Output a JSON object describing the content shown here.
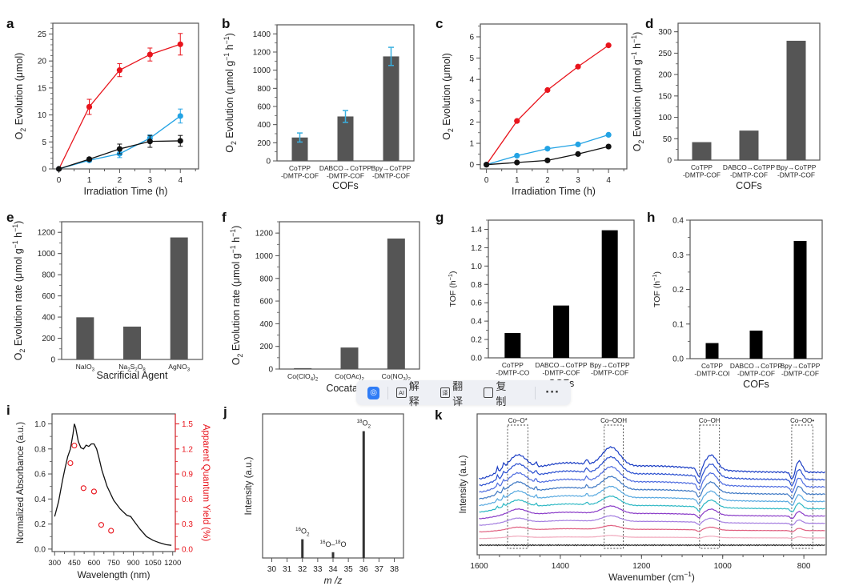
{
  "chart_data": [
    {
      "panel": "a",
      "type": "line",
      "xlabel": "Irradiation Time (h)",
      "ylabel": "O2 Evolution (μmol)",
      "xlim": [
        0,
        4
      ],
      "ylim": [
        0,
        27
      ],
      "xticks": [
        "0",
        "1",
        "2",
        "3",
        "4"
      ],
      "yticks": [
        "0",
        "5",
        "10",
        "15",
        "20",
        "25"
      ],
      "x": [
        0,
        1,
        2,
        3,
        4
      ],
      "series": [
        {
          "name": "red",
          "color": "#e8141c",
          "values": [
            0,
            11.5,
            18.3,
            21.2,
            23.1
          ],
          "errors": [
            0,
            1.4,
            1.2,
            1.2,
            2.0
          ]
        },
        {
          "name": "blue",
          "color": "#23a3e4",
          "values": [
            0,
            1.6,
            2.8,
            5.7,
            9.8
          ],
          "errors": [
            0,
            0.3,
            0.7,
            0.6,
            1.3
          ]
        },
        {
          "name": "black",
          "color": "#111111",
          "values": [
            0,
            1.8,
            3.7,
            5.1,
            5.2
          ],
          "errors": [
            0,
            0.3,
            0.9,
            1.1,
            1.0
          ]
        }
      ]
    },
    {
      "panel": "b",
      "type": "bar",
      "xlabel": "COFs",
      "ylabel": "O2 Evolution (μmol g-1 h-1)",
      "ylim": [
        0,
        1500
      ],
      "yticks": [
        "0",
        "200",
        "400",
        "600",
        "800",
        "1000",
        "1200",
        "1400"
      ],
      "categories": [
        [
          "CoTPP",
          "-DMTP-COF"
        ],
        [
          "DABCO→CoTPP",
          "-DMTP-COF"
        ],
        [
          "Bpy→CoTPP",
          "-DMTP-COF"
        ]
      ],
      "values": [
        258,
        490,
        1152
      ],
      "errors": [
        50,
        65,
        100
      ],
      "bar_color": "#555555",
      "error_color": "#3ab0e0"
    },
    {
      "panel": "c",
      "type": "line",
      "xlabel": "Irradiation Time (h)",
      "ylabel": "O2 Evolution (μmol)",
      "xlim": [
        0,
        4
      ],
      "ylim": [
        -0.2,
        6.6
      ],
      "xticks": [
        "0",
        "1",
        "2",
        "3",
        "4"
      ],
      "yticks": [
        "0",
        "1",
        "2",
        "3",
        "4",
        "5",
        "6"
      ],
      "x": [
        0,
        1,
        2,
        3,
        4
      ],
      "series": [
        {
          "name": "red",
          "color": "#e8141c",
          "values": [
            0,
            2.05,
            3.5,
            4.6,
            5.6
          ]
        },
        {
          "name": "blue",
          "color": "#23a3e4",
          "values": [
            0,
            0.42,
            0.75,
            0.95,
            1.4
          ]
        },
        {
          "name": "black",
          "color": "#111111",
          "values": [
            0,
            0.1,
            0.2,
            0.5,
            0.85
          ]
        }
      ]
    },
    {
      "panel": "d",
      "type": "bar",
      "xlabel": "COFs",
      "ylabel": "O2 Evolution (μmol g-1 h-1)",
      "ylim": [
        0,
        320
      ],
      "yticks": [
        "0",
        "50",
        "100",
        "150",
        "200",
        "250",
        "300"
      ],
      "categories": [
        [
          "CoTPP",
          "-DMTP-COF"
        ],
        [
          "DABCO→CoTPP",
          "-DMTP-COF"
        ],
        [
          "Bpy→CoTPP",
          "-DMTP-COF"
        ]
      ],
      "values": [
        42,
        69,
        279
      ],
      "bar_color": "#555555"
    },
    {
      "panel": "e",
      "type": "bar",
      "xlabel": "Sacrificial Agent",
      "ylabel": "O2 Evolution rate (μmol g-1 h-1)",
      "ylim": [
        0,
        1300
      ],
      "yticks": [
        "0",
        "200",
        "400",
        "600",
        "800",
        "1000",
        "1200"
      ],
      "categories": [
        [
          "NaIO3"
        ],
        [
          "Na2S2O8"
        ],
        [
          "AgNO3"
        ]
      ],
      "values": [
        398,
        310,
        1152
      ],
      "bar_color": "#555555"
    },
    {
      "panel": "f",
      "type": "bar",
      "xlabel": "Cocatalyst",
      "ylabel": "O2 Evolution rate (μmol g-1 h-1)",
      "ylim": [
        0,
        1300
      ],
      "yticks": [
        "0",
        "200",
        "400",
        "600",
        "800",
        "1000",
        "1200"
      ],
      "categories": [
        [
          "Co(ClO4)2"
        ],
        [
          "Co(OAc)2"
        ],
        [
          "Co(NO3)2"
        ]
      ],
      "values": [
        8,
        190,
        1152
      ],
      "bar_color": "#555555"
    },
    {
      "panel": "g",
      "type": "bar",
      "xlabel": "COFs",
      "ylabel": "TOF (h-1)",
      "ylim": [
        0,
        1.5
      ],
      "yticks": [
        "0.0",
        "0.2",
        "0.4",
        "0.6",
        "0.8",
        "1.0",
        "1.2",
        "1.4"
      ],
      "categories": [
        [
          "CoTPP",
          "-DMTP-CO"
        ],
        [
          "DABCO→CoTPP",
          "-DMTP-COF"
        ],
        [
          "Bpy→CoTPP",
          "-DMTP-COF"
        ]
      ],
      "values": [
        0.27,
        0.57,
        1.39
      ],
      "bar_color": "#000000"
    },
    {
      "panel": "h",
      "type": "bar",
      "xlabel": "COFs",
      "ylabel": "TOF (h-1)",
      "ylim": [
        0,
        0.4
      ],
      "yticks": [
        "0.0",
        "0.1",
        "0.2",
        "0.3",
        "0.4"
      ],
      "categories": [
        [
          "CoTPP",
          "-DMTP-COI"
        ],
        [
          "DABCO→CoTPP",
          "-DMTP-COF"
        ],
        [
          "Bpy→CoTPP",
          "-DMTP-COF"
        ]
      ],
      "values": [
        0.045,
        0.081,
        0.34
      ],
      "bar_color": "#000000"
    },
    {
      "panel": "i",
      "type": "line",
      "xlabel": "Wavelength (nm)",
      "ylabel": "Normalized Absorbance (a.u.)",
      "ylabel_right": "Apparent Quantum Yield (%)",
      "xlim": [
        280,
        1220
      ],
      "ylim": [
        -0.02,
        1.08
      ],
      "ylim_right": [
        -0.03,
        1.62
      ],
      "xticks": [
        "300",
        "450",
        "600",
        "750",
        "900",
        "1050",
        "1200"
      ],
      "yticks": [
        "0.0",
        "0.2",
        "0.4",
        "0.6",
        "0.8",
        "1.0"
      ],
      "yticks_right": [
        "0.0",
        "0.3",
        "0.6",
        "0.9",
        "1.2",
        "1.5"
      ],
      "absorbance": {
        "x": [
          300,
          330,
          360,
          380,
          400,
          420,
          440,
          450,
          460,
          480,
          500,
          520,
          540,
          560,
          580,
          600,
          620,
          640,
          660,
          700,
          750,
          800,
          850,
          880,
          900,
          950,
          1000,
          1050,
          1100,
          1150,
          1190
        ],
        "y": [
          0.26,
          0.38,
          0.55,
          0.65,
          0.74,
          0.8,
          0.92,
          1.0,
          0.97,
          0.86,
          0.81,
          0.8,
          0.83,
          0.82,
          0.84,
          0.84,
          0.8,
          0.72,
          0.63,
          0.5,
          0.39,
          0.32,
          0.27,
          0.26,
          0.23,
          0.16,
          0.1,
          0.07,
          0.05,
          0.035,
          0.03
        ]
      },
      "aqy_points": {
        "x": [
          420,
          450,
          520,
          600,
          655,
          730
        ],
        "y": [
          1.03,
          1.24,
          0.73,
          0.69,
          0.29,
          0.22
        ]
      },
      "line_color": "#111111",
      "point_color": "#e8141c"
    },
    {
      "panel": "j",
      "type": "bar",
      "xlabel": "m /z",
      "ylabel": "Intensity (a.u.)",
      "xlim": [
        29.4,
        38.6
      ],
      "xticks": [
        "30",
        "31",
        "32",
        "33",
        "34",
        "35",
        "36",
        "37",
        "38"
      ],
      "peaks": [
        {
          "x": 32,
          "value": 0.13,
          "label_iso": "16",
          "label_base": "O",
          "label_sub": "2"
        },
        {
          "x": 34,
          "value": 0.04,
          "label_iso": "16",
          "label_base": "O–",
          "label_iso2": "18",
          "label_base2": "O"
        },
        {
          "x": 36,
          "value": 0.88,
          "label_iso": "18",
          "label_base": "O",
          "label_sub": "2"
        }
      ]
    },
    {
      "panel": "k",
      "type": "line",
      "xlabel": "Wavenumber (cm-1)",
      "ylabel": "Intensity (a.u.)",
      "xlim": [
        1605,
        745
      ],
      "xticks": [
        "1600",
        "1400",
        "1200",
        "1000",
        "800"
      ],
      "regions": [
        {
          "label": "Co–O*",
          "from": 1530,
          "to": 1480
        },
        {
          "label": "Co–OOH",
          "from": 1292,
          "to": 1245
        },
        {
          "label": "Co–OH",
          "from": 1057,
          "to": 1008
        },
        {
          "label": "Co–OO•",
          "from": 830,
          "to": 778
        }
      ],
      "series_colors": [
        "#1a3dc4",
        "#2a4fd0",
        "#4f6de0",
        "#3e78c4",
        "#58a9e0",
        "#2eb8c4",
        "#8a3cc8",
        "#a47ee0",
        "#e06080",
        "#f0a8bc",
        "#222222"
      ]
    }
  ],
  "panel_labels": [
    "a",
    "b",
    "c",
    "d",
    "e",
    "f",
    "g",
    "h",
    "i",
    "j",
    "k"
  ],
  "toolbar": {
    "explain": "解释",
    "translate": "翻译",
    "copy": "复制",
    "more": "···",
    "explain_icon": "AI",
    "translate_icon": "译"
  }
}
